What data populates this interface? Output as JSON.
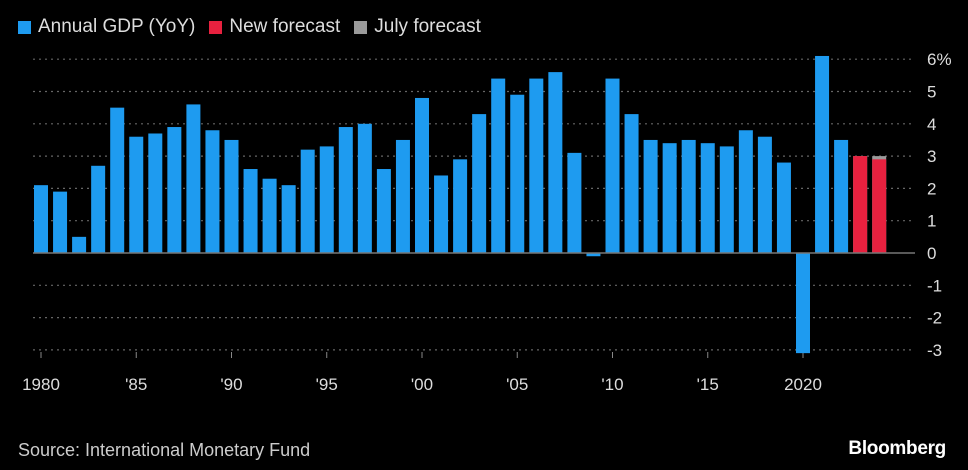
{
  "chart_data": {
    "type": "bar",
    "title": "",
    "xlabel": "",
    "ylabel": "",
    "ylim": [
      -3,
      6
    ],
    "y_ticks": [
      "6%",
      "5",
      "4",
      "3",
      "2",
      "1",
      "0",
      "-1",
      "-2",
      "-3"
    ],
    "y_tick_values": [
      6,
      5,
      4,
      3,
      2,
      1,
      0,
      -1,
      -2,
      -3
    ],
    "x_ticks": [
      {
        "year": 1980,
        "label": "1980"
      },
      {
        "year": 1985,
        "label": "'85"
      },
      {
        "year": 1990,
        "label": "'90"
      },
      {
        "year": 1995,
        "label": "'95"
      },
      {
        "year": 2000,
        "label": "'00"
      },
      {
        "year": 2005,
        "label": "'05"
      },
      {
        "year": 2010,
        "label": "'10"
      },
      {
        "year": 2015,
        "label": "'15"
      },
      {
        "year": 2020,
        "label": "2020"
      }
    ],
    "grid": "horizontal dotted",
    "legend_position": "top-left",
    "categories": [
      1980,
      1981,
      1982,
      1983,
      1984,
      1985,
      1986,
      1987,
      1988,
      1989,
      1990,
      1991,
      1992,
      1993,
      1994,
      1995,
      1996,
      1997,
      1998,
      1999,
      2000,
      2001,
      2002,
      2003,
      2004,
      2005,
      2006,
      2007,
      2008,
      2009,
      2010,
      2011,
      2012,
      2013,
      2014,
      2015,
      2016,
      2017,
      2018,
      2019,
      2020,
      2021,
      2022,
      2023,
      2024
    ],
    "series": [
      {
        "name": "Annual GDP (YoY)",
        "color": "#1e9bf0",
        "values": [
          2.1,
          1.9,
          0.5,
          2.7,
          4.5,
          3.6,
          3.7,
          3.9,
          4.6,
          3.8,
          3.5,
          2.6,
          2.3,
          2.1,
          3.2,
          3.3,
          3.9,
          4.0,
          2.6,
          3.5,
          4.8,
          2.4,
          2.9,
          4.3,
          5.4,
          4.9,
          5.4,
          5.6,
          3.1,
          -0.1,
          5.4,
          4.3,
          3.5,
          3.4,
          3.5,
          3.4,
          3.3,
          3.8,
          3.6,
          2.8,
          -3.1,
          6.1,
          3.5,
          null,
          null
        ]
      },
      {
        "name": "New forecast",
        "color": "#e8213f",
        "values": [
          null,
          null,
          null,
          null,
          null,
          null,
          null,
          null,
          null,
          null,
          null,
          null,
          null,
          null,
          null,
          null,
          null,
          null,
          null,
          null,
          null,
          null,
          null,
          null,
          null,
          null,
          null,
          null,
          null,
          null,
          null,
          null,
          null,
          null,
          null,
          null,
          null,
          null,
          null,
          null,
          null,
          null,
          null,
          3.0,
          2.9
        ]
      },
      {
        "name": "July forecast",
        "color": "#9a9a9a",
        "values": [
          null,
          null,
          null,
          null,
          null,
          null,
          null,
          null,
          null,
          null,
          null,
          null,
          null,
          null,
          null,
          null,
          null,
          null,
          null,
          null,
          null,
          null,
          null,
          null,
          null,
          null,
          null,
          null,
          null,
          null,
          null,
          null,
          null,
          null,
          null,
          null,
          null,
          null,
          null,
          null,
          null,
          null,
          null,
          3.0,
          3.0
        ]
      }
    ]
  },
  "footer": {
    "source": "Source: International Monetary Fund",
    "brand": "Bloomberg"
  }
}
